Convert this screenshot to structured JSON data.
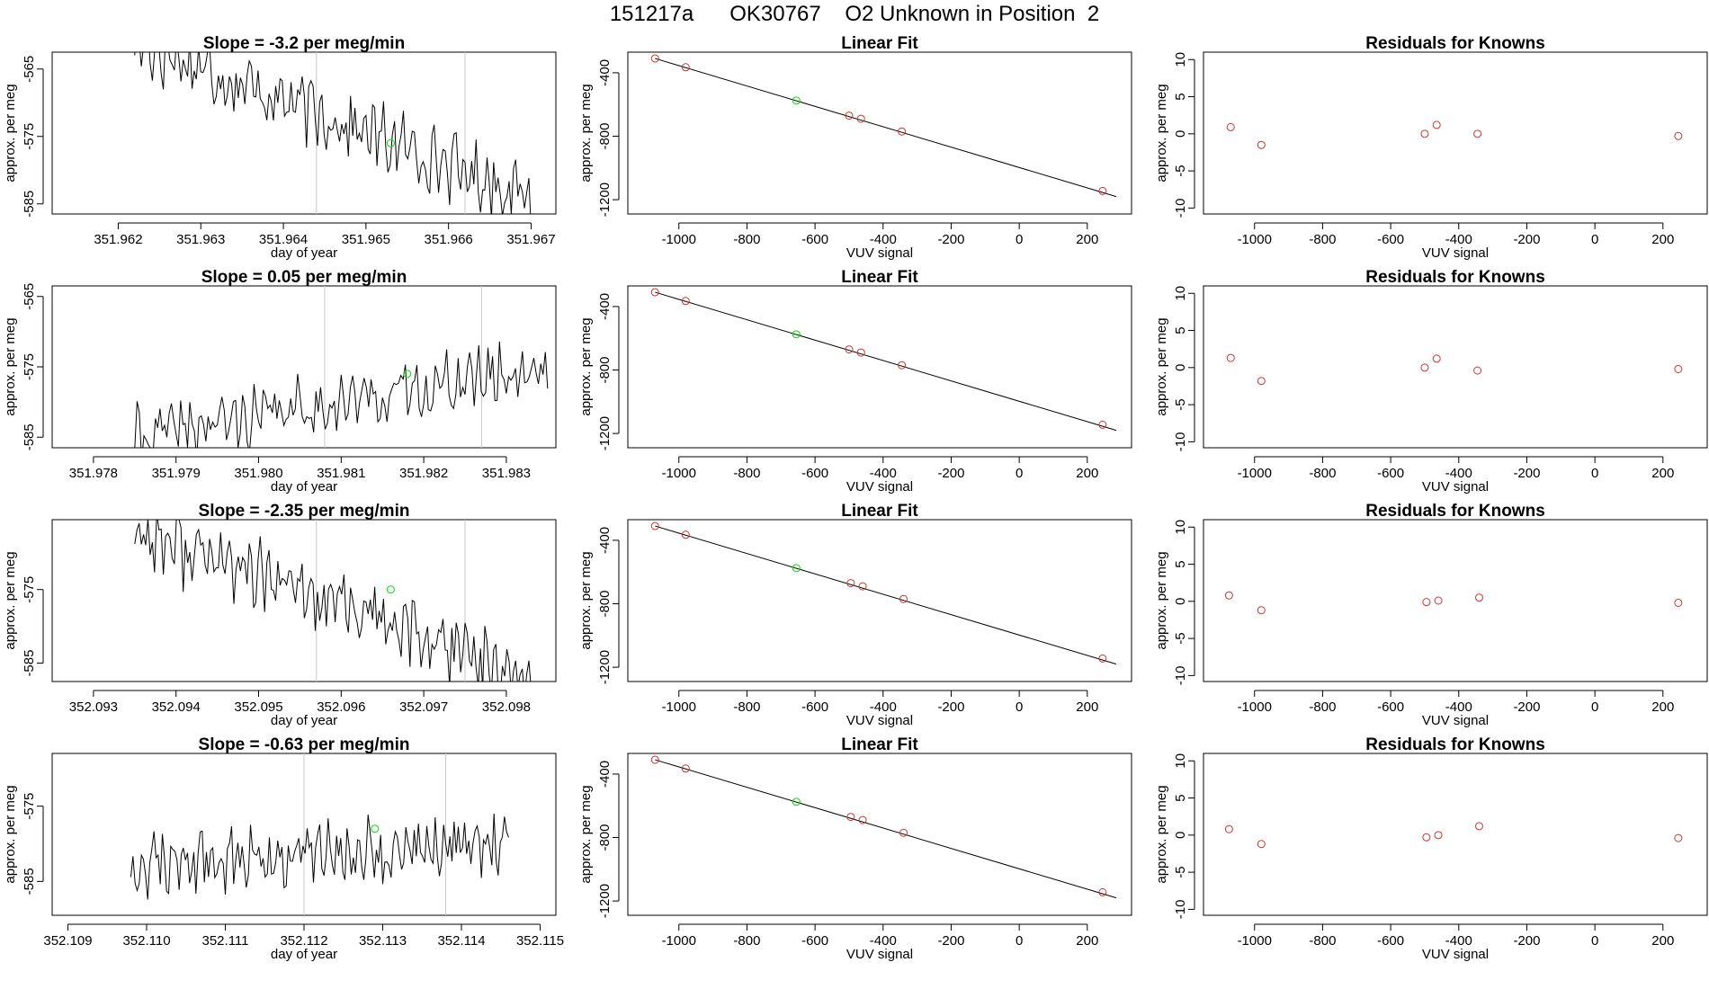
{
  "page_title": "151217a      OK30767    O2 Unknown in Position  2",
  "colors": {
    "trace": "#000000",
    "known_point": "#cd3333",
    "unknown_point": "#00dd00",
    "event_line": "#c8c8c8",
    "axis": "#000000"
  },
  "rows": [
    {
      "timeseries": {
        "title": "Slope =  -3.2  per meg/min",
        "xlabel": "day of year",
        "ylabel": "approx. per meg",
        "xlim": [
          351.9612,
          351.9673
        ],
        "ylim": [
          -586.5,
          -562.5
        ],
        "xticks": [
          351.962,
          351.963,
          351.964,
          351.965,
          351.966,
          351.967
        ],
        "xtick_labels": [
          "351.962",
          "351.963",
          "351.964",
          "351.965",
          "351.966",
          "351.967"
        ],
        "yticks": [
          -565,
          -575,
          -585
        ],
        "ytick_labels": [
          "-565",
          "-575",
          "-585"
        ],
        "vlines": [
          351.9644,
          351.9662
        ],
        "signal": {
          "x_start": 351.9622,
          "x_end": 351.967,
          "start_level": -561.0,
          "end_level": -584.0,
          "noise": 3.5,
          "seed": 17
        },
        "marker": {
          "x": 351.9653,
          "y": -576
        }
      },
      "linear_fit": {
        "title": "Linear Fit",
        "xlabel": "VUV signal",
        "ylabel": "approx. per meg",
        "xlim": [
          -1150,
          330
        ],
        "ylim": [
          -1290,
          -270
        ],
        "xticks": [
          -1000,
          -800,
          -600,
          -400,
          -200,
          0,
          200
        ],
        "xtick_labels": [
          "-1000",
          "-800",
          "-600",
          "-400",
          "-200",
          "0",
          "200"
        ],
        "yticks": [
          -400,
          -800,
          -1200
        ],
        "ytick_labels": [
          "-400",
          "-800",
          "-1200"
        ],
        "line": {
          "x": [
            -1070,
            285
          ],
          "y": [
            -310,
            -1180
          ]
        },
        "knowns": {
          "x": [
            -1070,
            -980,
            -500,
            -465,
            -345,
            245
          ],
          "y": [
            -310,
            -365,
            -670,
            -690,
            -770,
            -1145
          ]
        },
        "unknown": {
          "x": -655,
          "y": -575
        }
      },
      "residuals": {
        "title": "Residuals for Knowns",
        "xlabel": "VUV signal",
        "ylabel": "approx. per meg",
        "xlim": [
          -1150,
          330
        ],
        "ylim": [
          -10.8,
          11
        ],
        "xticks": [
          -1000,
          -800,
          -600,
          -400,
          -200,
          0,
          200
        ],
        "xtick_labels": [
          "-1000",
          "-800",
          "-600",
          "-400",
          "-200",
          "0",
          "200"
        ],
        "yticks": [
          10,
          5,
          0,
          -5,
          -10
        ],
        "ytick_labels": [
          "10",
          "5",
          "0",
          "-5",
          "-10"
        ],
        "points": {
          "x": [
            -1070,
            -980,
            -500,
            -465,
            -345,
            245
          ],
          "y": [
            0.9,
            -1.5,
            0.0,
            1.2,
            0.0,
            -0.3
          ]
        }
      }
    },
    {
      "timeseries": {
        "title": "Slope =  0.05  per meg/min",
        "xlabel": "day of year",
        "ylabel": "approx. per meg",
        "xlim": [
          351.9775,
          351.9836
        ],
        "ylim": [
          -586.5,
          -563.5
        ],
        "xticks": [
          351.978,
          351.979,
          351.98,
          351.981,
          351.982,
          351.983
        ],
        "xtick_labels": [
          "351.978",
          "351.979",
          "351.980",
          "351.981",
          "351.982",
          "351.983"
        ],
        "yticks": [
          -565,
          -575,
          -585
        ],
        "ytick_labels": [
          "-565",
          "-575",
          "-585"
        ],
        "vlines": [
          351.9808,
          351.9827
        ],
        "signal": {
          "x_start": 351.9785,
          "x_end": 351.9835,
          "start_level": -585.0,
          "end_level": -575.0,
          "noise": 3.0,
          "seed": 41
        },
        "marker": {
          "x": 351.9818,
          "y": -576
        }
      },
      "linear_fit": {
        "title": "Linear Fit",
        "xlabel": "VUV signal",
        "ylabel": "approx. per meg",
        "xlim": [
          -1150,
          330
        ],
        "ylim": [
          -1290,
          -270
        ],
        "xticks": [
          -1000,
          -800,
          -600,
          -400,
          -200,
          0,
          200
        ],
        "xtick_labels": [
          "-1000",
          "-800",
          "-600",
          "-400",
          "-200",
          "0",
          "200"
        ],
        "yticks": [
          -400,
          -800,
          -1200
        ],
        "ytick_labels": [
          "-400",
          "-800",
          "-1200"
        ],
        "line": {
          "x": [
            -1070,
            285
          ],
          "y": [
            -310,
            -1180
          ]
        },
        "knowns": {
          "x": [
            -1070,
            -980,
            -500,
            -465,
            -345,
            245
          ],
          "y": [
            -310,
            -365,
            -670,
            -690,
            -770,
            -1145
          ]
        },
        "unknown": {
          "x": -655,
          "y": -575
        }
      },
      "residuals": {
        "title": "Residuals for Knowns",
        "xlabel": "VUV signal",
        "ylabel": "approx. per meg",
        "xlim": [
          -1150,
          330
        ],
        "ylim": [
          -10.8,
          11
        ],
        "xticks": [
          -1000,
          -800,
          -600,
          -400,
          -200,
          0,
          200
        ],
        "xtick_labels": [
          "-1000",
          "-800",
          "-600",
          "-400",
          "-200",
          "0",
          "200"
        ],
        "yticks": [
          10,
          5,
          0,
          -5,
          -10
        ],
        "ytick_labels": [
          "10",
          "5",
          "0",
          "-5",
          "-10"
        ],
        "points": {
          "x": [
            -1070,
            -980,
            -500,
            -465,
            -345,
            245
          ],
          "y": [
            1.3,
            -1.8,
            0.0,
            1.2,
            -0.4,
            -0.2
          ]
        }
      }
    },
    {
      "timeseries": {
        "title": "Slope =  -2.35  per meg/min",
        "xlabel": "day of year",
        "ylabel": "approx. per meg",
        "xlim": [
          352.0925,
          352.0986
        ],
        "ylim": [
          -587.5,
          -565.5
        ],
        "xticks": [
          352.093,
          352.094,
          352.095,
          352.096,
          352.097,
          352.098
        ],
        "xtick_labels": [
          "352.093",
          "352.094",
          "352.095",
          "352.096",
          "352.097",
          "352.098"
        ],
        "yticks": [
          -575,
          -585
        ],
        "ytick_labels": [
          "-575",
          "-585"
        ],
        "vlines": [
          352.0957,
          352.0975
        ],
        "signal": {
          "x_start": 352.0935,
          "x_end": 352.0983,
          "start_level": -567.0,
          "end_level": -587.0,
          "noise": 3.5,
          "seed": 77
        },
        "marker": {
          "x": 352.0966,
          "y": -575
        }
      },
      "linear_fit": {
        "title": "Linear Fit",
        "xlabel": "VUV signal",
        "ylabel": "approx. per meg",
        "xlim": [
          -1150,
          330
        ],
        "ylim": [
          -1290,
          -270
        ],
        "xticks": [
          -1000,
          -800,
          -600,
          -400,
          -200,
          0,
          200
        ],
        "xtick_labels": [
          "-1000",
          "-800",
          "-600",
          "-400",
          "-200",
          "0",
          "200"
        ],
        "yticks": [
          -400,
          -800,
          -1200
        ],
        "ytick_labels": [
          "-400",
          "-800",
          "-1200"
        ],
        "line": {
          "x": [
            -1070,
            285
          ],
          "y": [
            -310,
            -1180
          ]
        },
        "knowns": {
          "x": [
            -1070,
            -980,
            -495,
            -460,
            -340,
            245
          ],
          "y": [
            -310,
            -365,
            -670,
            -690,
            -770,
            -1145
          ]
        },
        "unknown": {
          "x": -655,
          "y": -575
        }
      },
      "residuals": {
        "title": "Residuals for Knowns",
        "xlabel": "VUV signal",
        "ylabel": "approx. per meg",
        "xlim": [
          -1150,
          330
        ],
        "ylim": [
          -10.8,
          11
        ],
        "xticks": [
          -1000,
          -800,
          -600,
          -400,
          -200,
          0,
          200
        ],
        "xtick_labels": [
          "-1000",
          "-800",
          "-600",
          "-400",
          "-200",
          "0",
          "200"
        ],
        "yticks": [
          10,
          5,
          0,
          -5,
          -10
        ],
        "ytick_labels": [
          "10",
          "5",
          "0",
          "-5",
          "-10"
        ],
        "points": {
          "x": [
            -1075,
            -980,
            -495,
            -460,
            -340,
            245
          ],
          "y": [
            0.8,
            -1.2,
            -0.1,
            0.1,
            0.5,
            -0.2
          ]
        }
      }
    },
    {
      "timeseries": {
        "title": "Slope =  -0.63  per meg/min",
        "xlabel": "day of year",
        "ylabel": "approx. per meg",
        "xlim": [
          352.1088,
          352.1152
        ],
        "ylim": [
          -589.5,
          -568.0
        ],
        "xticks": [
          352.109,
          352.11,
          352.111,
          352.112,
          352.113,
          352.114,
          352.115
        ],
        "xtick_labels": [
          "352.109",
          "352.110",
          "352.111",
          "352.112",
          "352.113",
          "352.114",
          "352.115"
        ],
        "yticks": [
          -575,
          -585
        ],
        "ytick_labels": [
          "-575",
          "-585"
        ],
        "vlines": [
          352.112,
          352.1138
        ],
        "signal": {
          "x_start": 352.1098,
          "x_end": 352.1146,
          "start_level": -583.0,
          "end_level": -580.0,
          "noise": 3.0,
          "seed": 123
        },
        "marker": {
          "x": 352.1129,
          "y": -578
        }
      },
      "linear_fit": {
        "title": "Linear Fit",
        "xlabel": "VUV signal",
        "ylabel": "approx. per meg",
        "xlim": [
          -1150,
          330
        ],
        "ylim": [
          -1290,
          -270
        ],
        "xticks": [
          -1000,
          -800,
          -600,
          -400,
          -200,
          0,
          200
        ],
        "xtick_labels": [
          "-1000",
          "-800",
          "-600",
          "-400",
          "-200",
          "0",
          "200"
        ],
        "yticks": [
          -400,
          -800,
          -1200
        ],
        "ytick_labels": [
          "-400",
          "-800",
          "-1200"
        ],
        "line": {
          "x": [
            -1070,
            285
          ],
          "y": [
            -310,
            -1180
          ]
        },
        "knowns": {
          "x": [
            -1070,
            -980,
            -495,
            -460,
            -340,
            245
          ],
          "y": [
            -310,
            -365,
            -670,
            -690,
            -770,
            -1145
          ]
        },
        "unknown": {
          "x": -655,
          "y": -575
        }
      },
      "residuals": {
        "title": "Residuals for Knowns",
        "xlabel": "VUV signal",
        "ylabel": "approx. per meg",
        "xlim": [
          -1150,
          330
        ],
        "ylim": [
          -10.8,
          11
        ],
        "xticks": [
          -1000,
          -800,
          -600,
          -400,
          -200,
          0,
          200
        ],
        "xtick_labels": [
          "-1000",
          "-800",
          "-600",
          "-400",
          "-200",
          "0",
          "200"
        ],
        "points": {
          "x": [
            -1075,
            -980,
            -495,
            -460,
            -340,
            245
          ],
          "y": [
            0.8,
            -1.2,
            -0.3,
            0.0,
            1.2,
            -0.4
          ]
        },
        "yticks": [
          10,
          5,
          0,
          -5,
          -10
        ],
        "ytick_labels": [
          "10",
          "5",
          "0",
          "-5",
          "-10"
        ]
      }
    }
  ],
  "chart_data": [
    {
      "type": "line",
      "title": "Slope =  -3.2  per meg/min",
      "xlabel": "day of year",
      "ylabel": "approx. per meg",
      "xlim": [
        351.9612,
        351.9673
      ],
      "ylim": [
        -586.5,
        -562.5
      ]
    },
    {
      "type": "scatter",
      "title": "Linear Fit",
      "xlabel": "VUV signal",
      "ylabel": "approx. per meg",
      "series": [
        {
          "name": "knowns",
          "x": [
            -1070,
            -980,
            -500,
            -465,
            -345,
            245
          ],
          "y": [
            -310,
            -365,
            -670,
            -690,
            -770,
            -1145
          ]
        },
        {
          "name": "unknown",
          "x": [
            -655
          ],
          "y": [
            -575
          ]
        }
      ]
    },
    {
      "type": "scatter",
      "title": "Residuals for Knowns",
      "xlabel": "VUV signal",
      "ylabel": "approx. per meg",
      "series": [
        {
          "name": "residuals",
          "x": [
            -1070,
            -980,
            -500,
            -465,
            -345,
            245
          ],
          "y": [
            0.9,
            -1.5,
            0.0,
            1.2,
            0.0,
            -0.3
          ]
        }
      ]
    },
    {
      "type": "line",
      "title": "Slope =  0.05  per meg/min",
      "xlabel": "day of year",
      "ylabel": "approx. per meg",
      "xlim": [
        351.9775,
        351.9836
      ],
      "ylim": [
        -586.5,
        -563.5
      ]
    },
    {
      "type": "scatter",
      "title": "Residuals for Knowns",
      "series": [
        {
          "name": "residuals",
          "x": [
            -1070,
            -980,
            -500,
            -465,
            -345,
            245
          ],
          "y": [
            1.3,
            -1.8,
            0.0,
            1.2,
            -0.4,
            -0.2
          ]
        }
      ]
    },
    {
      "type": "line",
      "title": "Slope =  -2.35  per meg/min",
      "xlabel": "day of year",
      "ylabel": "approx. per meg",
      "xlim": [
        352.0925,
        352.0986
      ],
      "ylim": [
        -587.5,
        -565.5
      ]
    },
    {
      "type": "scatter",
      "title": "Residuals for Knowns",
      "series": [
        {
          "name": "residuals",
          "x": [
            -1075,
            -980,
            -495,
            -460,
            -340,
            245
          ],
          "y": [
            0.8,
            -1.2,
            -0.1,
            0.1,
            0.5,
            -0.2
          ]
        }
      ]
    },
    {
      "type": "line",
      "title": "Slope =  -0.63  per meg/min",
      "xlabel": "day of year",
      "ylabel": "approx. per meg",
      "xlim": [
        352.1088,
        352.1152
      ],
      "ylim": [
        -589.5,
        -568.0
      ]
    },
    {
      "type": "scatter",
      "title": "Residuals for Knowns",
      "series": [
        {
          "name": "residuals",
          "x": [
            -1075,
            -980,
            -495,
            -460,
            -340,
            245
          ],
          "y": [
            0.8,
            -1.2,
            -0.3,
            0.0,
            1.2,
            -0.4
          ]
        }
      ]
    }
  ]
}
